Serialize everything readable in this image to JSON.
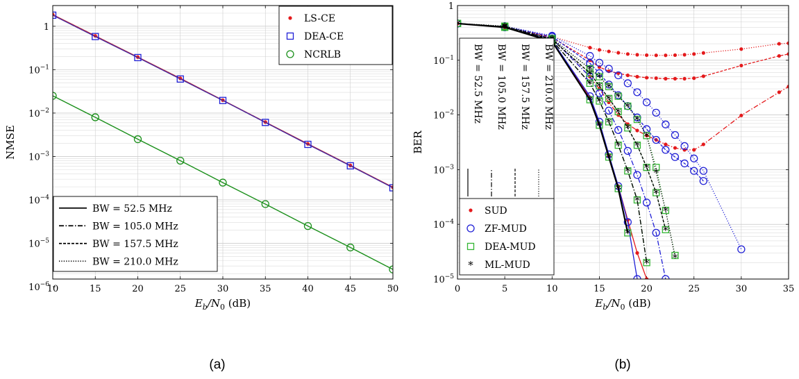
{
  "figure": {
    "panel_a_label": "(a)",
    "panel_b_label": "(b)"
  },
  "chart_data": [
    {
      "type": "line",
      "panel": "(a)",
      "xlabel": "E_b/N_0 (dB)",
      "xlabel_parts": {
        "main": "E",
        "sub1": "b",
        "slash": "/N",
        "sub2": "0",
        "unit": " (dB)"
      },
      "ylabel": "NMSE",
      "yscale": "log",
      "xlim": [
        10,
        50
      ],
      "ylim": [
        1.5e-06,
        3
      ],
      "xticks": [
        10,
        15,
        20,
        25,
        30,
        35,
        40,
        45,
        50
      ],
      "xtick_labels": [
        "10",
        "15",
        "20",
        "25",
        "30",
        "35",
        "40",
        "45",
        "50"
      ],
      "yticks": [
        1,
        0.1,
        0.01,
        0.001,
        0.0001,
        1e-05,
        1e-06
      ],
      "ytick_labels": [
        {
          "base": "1",
          "exp": ""
        },
        {
          "base": "10",
          "exp": "−1"
        },
        {
          "base": "10",
          "exp": "−2"
        },
        {
          "base": "10",
          "exp": "−3"
        },
        {
          "base": "10",
          "exp": "−4"
        },
        {
          "base": "10",
          "exp": "−5"
        },
        {
          "base": "10",
          "exp": "−6"
        }
      ],
      "grid": true,
      "legend_placement": [
        "top-right",
        "bottom-left"
      ],
      "x": [
        10,
        15,
        20,
        25,
        30,
        35,
        40,
        45,
        50
      ],
      "series": [
        {
          "name": "LS-CE",
          "marker": "dot",
          "color": "#e41a1c",
          "values": [
            1.85,
            0.6,
            0.195,
            0.063,
            0.0198,
            0.0062,
            0.00195,
            0.00062,
            0.000195
          ]
        },
        {
          "name": "DEA-CE",
          "marker": "square",
          "color": "#1f1fd6",
          "values": [
            1.8,
            0.58,
            0.19,
            0.061,
            0.0195,
            0.0061,
            0.0019,
            0.00061,
            0.00019
          ]
        },
        {
          "name": "NCRLB",
          "marker": "circle",
          "color": "#1a8f1a",
          "values": [
            0.025,
            0.008,
            0.0025,
            0.0008,
            0.00025,
            8e-05,
            2.5e-05,
            8e-06,
            2.5e-06
          ]
        }
      ],
      "marker_legend": [
        {
          "label": "LS-CE",
          "marker": "dot",
          "color": "#e41a1c"
        },
        {
          "label": "DEA-CE",
          "marker": "square",
          "color": "#1f1fd6"
        },
        {
          "label": "NCRLB",
          "marker": "circle",
          "color": "#1a8f1a"
        }
      ],
      "line_legend": [
        {
          "label": "BW = 52.5 MHz",
          "dash": "solid"
        },
        {
          "label": "BW = 105.0 MHz",
          "dash": "dashdot"
        },
        {
          "label": "BW = 157.5 MHz",
          "dash": "dashed"
        },
        {
          "label": "BW = 210.0 MHz",
          "dash": "dotted"
        }
      ]
    },
    {
      "type": "line",
      "panel": "(b)",
      "xlabel": "E_b/N_0 (dB)",
      "xlabel_parts": {
        "main": "E",
        "sub1": "b",
        "slash": "/N",
        "sub2": "0",
        "unit": " (dB)"
      },
      "ylabel": "BER",
      "yscale": "log",
      "xlim": [
        0,
        35
      ],
      "ylim": [
        1e-05,
        1
      ],
      "xticks": [
        0,
        5,
        10,
        15,
        20,
        25,
        30,
        35
      ],
      "xtick_labels": [
        "0",
        "5",
        "10",
        "15",
        "20",
        "25",
        "30",
        "35"
      ],
      "yticks": [
        1,
        0.1,
        0.01,
        0.001,
        0.0001,
        1e-05
      ],
      "ytick_labels": [
        {
          "base": "1",
          "exp": ""
        },
        {
          "base": "10",
          "exp": "−1"
        },
        {
          "base": "10",
          "exp": "−2"
        },
        {
          "base": "10",
          "exp": "−3"
        },
        {
          "base": "10",
          "exp": "−4"
        },
        {
          "base": "10",
          "exp": "−5"
        }
      ],
      "grid": true,
      "legend_placement": [
        "top-left",
        "bottom-left"
      ],
      "series": [
        {
          "name": "SUD",
          "bw": "BW = 52.5 MHz",
          "marker": "dot",
          "color": "#e41a1c",
          "dash": "solid",
          "x": [
            0,
            5,
            10,
            14,
            15,
            16,
            17,
            18,
            19,
            20
          ],
          "values": [
            0.47,
            0.4,
            0.22,
            0.021,
            0.007,
            0.0018,
            0.0005,
            0.00012,
            3e-05,
            1e-05
          ]
        },
        {
          "name": "SUD",
          "bw": "BW = 105.0 MHz",
          "marker": "dot",
          "color": "#e41a1c",
          "dash": "dashdot",
          "x": [
            0,
            5,
            10,
            14,
            15,
            16,
            17,
            18,
            19,
            20,
            21,
            22,
            23,
            24,
            25,
            26,
            30,
            34,
            35
          ],
          "values": [
            0.47,
            0.4,
            0.25,
            0.05,
            0.03,
            0.017,
            0.01,
            0.0068,
            0.0052,
            0.0042,
            0.0035,
            0.0029,
            0.0025,
            0.0023,
            0.0023,
            0.0029,
            0.0098,
            0.026,
            0.033
          ]
        },
        {
          "name": "SUD",
          "bw": "BW = 157.5 MHz",
          "marker": "dot",
          "color": "#e41a1c",
          "dash": "dashed",
          "x": [
            0,
            5,
            10,
            14,
            15,
            16,
            17,
            18,
            19,
            20,
            21,
            22,
            23,
            24,
            25,
            26,
            30,
            34,
            35
          ],
          "values": [
            0.47,
            0.41,
            0.26,
            0.1,
            0.075,
            0.063,
            0.058,
            0.053,
            0.05,
            0.048,
            0.047,
            0.046,
            0.046,
            0.046,
            0.047,
            0.051,
            0.08,
            0.12,
            0.13
          ]
        },
        {
          "name": "SUD",
          "bw": "BW = 210.0 MHz",
          "marker": "dot",
          "color": "#e41a1c",
          "dash": "dotted",
          "x": [
            0,
            5,
            10,
            14,
            15,
            16,
            17,
            18,
            19,
            20,
            21,
            22,
            23,
            24,
            25,
            26,
            30,
            34,
            35
          ],
          "values": [
            0.47,
            0.42,
            0.27,
            0.17,
            0.155,
            0.145,
            0.137,
            0.13,
            0.126,
            0.124,
            0.123,
            0.123,
            0.124,
            0.126,
            0.13,
            0.136,
            0.16,
            0.2,
            0.205
          ]
        },
        {
          "name": "ZF-MUD",
          "bw": "BW = 52.5 MHz",
          "marker": "circle",
          "color": "#1f1fd6",
          "dash": "solid",
          "x": [
            0,
            5,
            10,
            14,
            15,
            16,
            17,
            18,
            19
          ],
          "values": [
            0.47,
            0.4,
            0.23,
            0.022,
            0.0075,
            0.0019,
            0.0005,
            0.00011,
            1e-05
          ]
        },
        {
          "name": "ZF-MUD",
          "bw": "BW = 105.0 MHz",
          "marker": "circle",
          "color": "#1f1fd6",
          "dash": "dashdot",
          "x": [
            0,
            5,
            10,
            14,
            15,
            16,
            17,
            18,
            19,
            20,
            21,
            22
          ],
          "values": [
            0.47,
            0.4,
            0.25,
            0.05,
            0.025,
            0.012,
            0.0053,
            0.0022,
            0.0008,
            0.00025,
            7e-05,
            1e-05
          ]
        },
        {
          "name": "ZF-MUD",
          "bw": "BW = 157.5 MHz",
          "marker": "circle",
          "color": "#1f1fd6",
          "dash": "dashed",
          "x": [
            0,
            5,
            10,
            14,
            15,
            16,
            17,
            18,
            19,
            20,
            21,
            22,
            23,
            24,
            25,
            26
          ],
          "values": [
            0.47,
            0.41,
            0.27,
            0.088,
            0.058,
            0.036,
            0.023,
            0.0145,
            0.009,
            0.0055,
            0.0035,
            0.0023,
            0.0017,
            0.0013,
            0.00095,
            0.00062
          ]
        },
        {
          "name": "ZF-MUD",
          "bw": "BW = 210.0 MHz",
          "marker": "circle",
          "color": "#1f1fd6",
          "dash": "dotted",
          "x": [
            0,
            5,
            10,
            14,
            15,
            16,
            17,
            18,
            19,
            20,
            21,
            22,
            23,
            24,
            25,
            26,
            30
          ],
          "values": [
            0.47,
            0.42,
            0.28,
            0.12,
            0.09,
            0.07,
            0.053,
            0.038,
            0.026,
            0.017,
            0.011,
            0.0067,
            0.0043,
            0.0027,
            0.0016,
            0.00095,
            3.5e-05
          ]
        },
        {
          "name": "DEA-MUD",
          "bw": "BW = 52.5 MHz",
          "marker": "square",
          "color": "#33b533",
          "dash": "solid",
          "x": [
            0,
            5,
            10,
            14,
            15,
            16,
            17,
            18
          ],
          "values": [
            0.47,
            0.4,
            0.22,
            0.019,
            0.0065,
            0.0017,
            0.00045,
            7e-05
          ]
        },
        {
          "name": "DEA-MUD",
          "bw": "BW = 105.0 MHz",
          "marker": "square",
          "color": "#33b533",
          "dash": "dashdot",
          "x": [
            0,
            5,
            10,
            14,
            15,
            16,
            17,
            18,
            19,
            20
          ],
          "values": [
            0.47,
            0.41,
            0.23,
            0.038,
            0.018,
            0.0075,
            0.0028,
            0.00095,
            0.00028,
            2e-05
          ]
        },
        {
          "name": "DEA-MUD",
          "bw": "BW = 157.5 MHz",
          "marker": "square",
          "color": "#33b533",
          "dash": "dashed",
          "x": [
            0,
            5,
            10,
            14,
            15,
            16,
            17,
            18,
            19,
            20,
            21,
            22
          ],
          "values": [
            0.47,
            0.41,
            0.24,
            0.058,
            0.034,
            0.02,
            0.0115,
            0.0058,
            0.0028,
            0.0011,
            0.00038,
            8e-05
          ]
        },
        {
          "name": "DEA-MUD",
          "bw": "BW = 210.0 MHz",
          "marker": "square",
          "color": "#33b533",
          "dash": "dotted",
          "x": [
            0,
            5,
            10,
            14,
            15,
            16,
            17,
            18,
            19,
            20,
            21,
            22,
            23
          ],
          "values": [
            0.47,
            0.42,
            0.25,
            0.07,
            0.05,
            0.033,
            0.022,
            0.0145,
            0.0083,
            0.0042,
            0.0011,
            0.00018,
            2.7e-05
          ]
        },
        {
          "name": "ML-MUD",
          "bw": "BW = 52.5 MHz",
          "marker": "star",
          "color": "#000000",
          "dash": "solid",
          "x": [
            0,
            5,
            10,
            14,
            15,
            16,
            17,
            18
          ],
          "values": [
            0.47,
            0.4,
            0.22,
            0.019,
            0.0065,
            0.0017,
            0.00045,
            7e-05
          ]
        },
        {
          "name": "ML-MUD",
          "bw": "BW = 105.0 MHz",
          "marker": "star",
          "color": "#000000",
          "dash": "dashdot",
          "x": [
            0,
            5,
            10,
            14,
            15,
            16,
            17,
            18,
            19,
            20
          ],
          "values": [
            0.47,
            0.41,
            0.23,
            0.038,
            0.018,
            0.0075,
            0.0028,
            0.00095,
            0.00028,
            2e-05
          ]
        },
        {
          "name": "ML-MUD",
          "bw": "BW = 157.5 MHz",
          "marker": "star",
          "color": "#000000",
          "dash": "dashed",
          "x": [
            0,
            5,
            10,
            14,
            15,
            16,
            17,
            18,
            19,
            20,
            21,
            22
          ],
          "values": [
            0.47,
            0.41,
            0.24,
            0.058,
            0.034,
            0.02,
            0.0115,
            0.0058,
            0.0028,
            0.0011,
            0.00038,
            8e-05
          ]
        },
        {
          "name": "ML-MUD",
          "bw": "BW = 210.0 MHz",
          "marker": "star",
          "color": "#000000",
          "dash": "dotted",
          "x": [
            0,
            5,
            10,
            14,
            15,
            16,
            17,
            18,
            19,
            20,
            21,
            22,
            23
          ],
          "values": [
            0.47,
            0.42,
            0.25,
            0.07,
            0.05,
            0.033,
            0.022,
            0.0145,
            0.0083,
            0.0042,
            0.0009,
            0.00018,
            2.5e-05
          ]
        }
      ],
      "marker_legend": [
        {
          "label": "SUD",
          "marker": "dot",
          "color": "#e41a1c"
        },
        {
          "label": "ZF-MUD",
          "marker": "circle",
          "color": "#1f1fd6"
        },
        {
          "label": "DEA-MUD",
          "marker": "square",
          "color": "#33b533"
        },
        {
          "label": "ML-MUD",
          "marker": "star",
          "color": "#000000"
        }
      ],
      "line_legend": [
        {
          "label": "BW = 52.5 MHz",
          "dash": "solid"
        },
        {
          "label": "BW = 105.0 MHz",
          "dash": "dashdot"
        },
        {
          "label": "BW = 157.5 MHz",
          "dash": "dashed"
        },
        {
          "label": "BW = 210.0 MHz",
          "dash": "dotted"
        }
      ]
    }
  ]
}
